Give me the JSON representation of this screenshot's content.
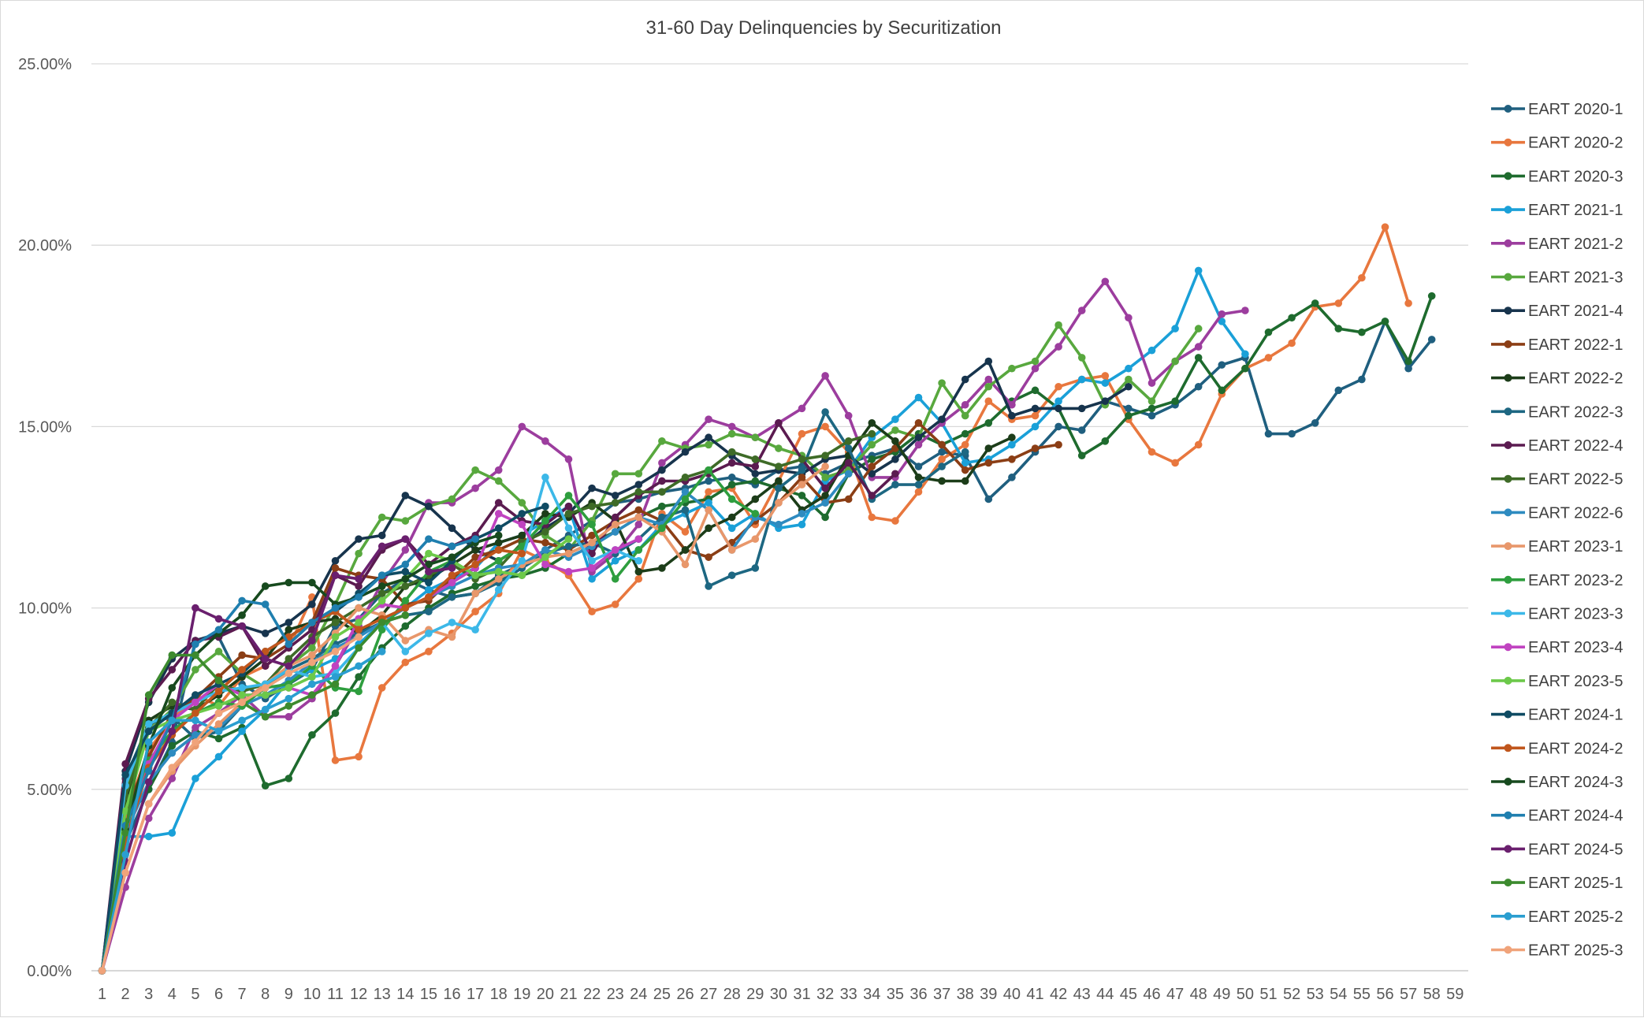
{
  "chart_data": {
    "type": "line",
    "title": "31-60 Day Delinquencies by Securitization",
    "xlabel": "",
    "ylabel": "",
    "x_ticks": [
      "1",
      "2",
      "3",
      "4",
      "5",
      "6",
      "7",
      "8",
      "9",
      "10",
      "11",
      "12",
      "13",
      "14",
      "15",
      "16",
      "17",
      "18",
      "19",
      "20",
      "21",
      "22",
      "23",
      "24",
      "25",
      "26",
      "27",
      "28",
      "29",
      "30",
      "31",
      "32",
      "33",
      "34",
      "35",
      "36",
      "37",
      "38",
      "39",
      "40",
      "41",
      "42",
      "43",
      "44",
      "45",
      "46",
      "47",
      "48",
      "49",
      "50",
      "51",
      "52",
      "53",
      "54",
      "55",
      "56",
      "57",
      "58",
      "59"
    ],
    "y_ticks": [
      "0.00%",
      "5.00%",
      "10.00%",
      "15.00%",
      "20.00%",
      "25.00%"
    ],
    "ylim": [
      0,
      25
    ],
    "xlim": [
      1,
      59
    ],
    "grid": true,
    "legend_position": "right",
    "series": [
      {
        "name": "EART 2020-1",
        "color": "#1F5F7F",
        "values": [
          0,
          3.5,
          5.0,
          6.3,
          9.1,
          9.2,
          7.9,
          7.5,
          7.9,
          8.3,
          9.5,
          9.7,
          10.4,
          10.8,
          10.5,
          10.3,
          10.4,
          10.9,
          11.2,
          11.6,
          12.0,
          12.4,
          12.9,
          13.0,
          13.2,
          13.3,
          13.5,
          13.6,
          13.4,
          13.8,
          13.9,
          13.7,
          14.0,
          14.2,
          14.4,
          13.9,
          14.3,
          14.2,
          13.0,
          13.6,
          14.3,
          15.0,
          14.9,
          15.7,
          15.5,
          15.3,
          15.6,
          16.1,
          16.7,
          16.9,
          14.8,
          14.8,
          15.1,
          16.0,
          16.3,
          17.9,
          16.6,
          17.4
        ]
      },
      {
        "name": "EART 2020-2",
        "color": "#E8773E",
        "values": [
          0,
          4.3,
          6.1,
          6.9,
          7.6,
          7.3,
          8.1,
          8.4,
          8.9,
          10.3,
          5.8,
          5.9,
          7.8,
          8.5,
          8.8,
          9.3,
          9.9,
          10.4,
          11.6,
          11.3,
          10.9,
          9.9,
          10.1,
          10.8,
          12.6,
          12.1,
          13.2,
          13.3,
          12.3,
          13.5,
          14.8,
          15.0,
          14.3,
          12.5,
          12.4,
          13.2,
          14.1,
          14.5,
          15.7,
          15.2,
          15.3,
          16.1,
          16.3,
          16.4,
          15.2,
          14.3,
          14.0,
          14.5,
          15.9,
          16.6,
          16.9,
          17.3,
          18.3,
          18.4,
          19.1,
          20.5,
          18.4
        ]
      },
      {
        "name": "EART 2020-3",
        "color": "#1E6B2E",
        "values": [
          0,
          4.1,
          5.0,
          6.2,
          6.6,
          6.4,
          6.7,
          5.1,
          5.3,
          6.5,
          7.1,
          8.1,
          8.9,
          9.5,
          10.0,
          10.4,
          10.6,
          10.8,
          10.9,
          11.1,
          11.5,
          11.8,
          12.1,
          12.5,
          12.8,
          12.9,
          13.0,
          13.4,
          13.5,
          13.3,
          13.1,
          12.5,
          13.7,
          14.1,
          14.3,
          14.8,
          14.5,
          14.8,
          15.1,
          15.7,
          16.0,
          15.5,
          14.2,
          14.6,
          15.3,
          15.5,
          15.7,
          16.9,
          16.0,
          16.6,
          17.6,
          18.0,
          18.4,
          17.7,
          17.6,
          17.9,
          16.8,
          18.6
        ]
      },
      {
        "name": "EART 2021-1",
        "color": "#1AA0D8",
        "values": [
          0,
          3.7,
          3.7,
          3.8,
          5.3,
          5.9,
          6.6,
          7.2,
          8.0,
          8.3,
          8.6,
          9.0,
          9.6,
          10.0,
          10.5,
          10.8,
          11.1,
          11.8,
          12.0,
          12.4,
          12.8,
          10.8,
          11.3,
          11.6,
          12.3,
          12.6,
          12.9,
          12.2,
          12.6,
          12.2,
          12.3,
          13.5,
          13.8,
          14.7,
          15.2,
          15.8,
          15.1,
          14.0,
          14.1,
          14.5,
          15.0,
          15.7,
          16.3,
          16.2,
          16.6,
          17.1,
          17.7,
          19.3,
          17.9,
          17.0
        ]
      },
      {
        "name": "EART 2021-2",
        "color": "#9C3D9E",
        "values": [
          0,
          2.3,
          4.2,
          5.3,
          6.7,
          7.1,
          7.6,
          7.0,
          7.0,
          7.5,
          8.4,
          9.5,
          10.7,
          11.6,
          12.9,
          12.9,
          13.3,
          13.8,
          15.0,
          14.6,
          14.1,
          11.0,
          11.5,
          12.3,
          14.0,
          14.5,
          15.2,
          15.0,
          14.7,
          15.1,
          15.5,
          16.4,
          15.3,
          13.6,
          13.6,
          14.5,
          15.1,
          15.6,
          16.3,
          15.6,
          16.6,
          17.2,
          18.2,
          19.0,
          18.0,
          16.2,
          16.8,
          17.2,
          18.1,
          18.2
        ]
      },
      {
        "name": "EART 2021-3",
        "color": "#58A83E",
        "values": [
          0,
          5.0,
          6.6,
          7.2,
          8.3,
          8.8,
          8.2,
          7.8,
          8.4,
          8.9,
          10.1,
          11.5,
          12.5,
          12.4,
          12.8,
          13.0,
          13.8,
          13.5,
          12.9,
          12.0,
          11.6,
          12.4,
          13.7,
          13.7,
          14.6,
          14.4,
          14.5,
          14.8,
          14.7,
          14.4,
          14.2,
          13.6,
          13.8,
          14.5,
          14.9,
          14.7,
          16.2,
          15.3,
          16.1,
          16.6,
          16.8,
          17.8,
          16.9,
          15.6,
          16.3,
          15.7,
          16.8,
          17.7
        ]
      },
      {
        "name": "EART 2021-4",
        "color": "#17344D",
        "values": [
          0,
          5.5,
          7.4,
          8.6,
          9.1,
          9.3,
          9.5,
          9.3,
          9.6,
          10.1,
          11.3,
          11.9,
          12.0,
          13.1,
          12.8,
          12.2,
          11.6,
          11.3,
          11.7,
          12.2,
          12.6,
          13.3,
          13.1,
          13.4,
          13.8,
          14.3,
          14.7,
          14.2,
          13.7,
          13.8,
          13.7,
          14.1,
          14.2,
          13.7,
          14.1,
          14.7,
          15.2,
          16.3,
          16.8,
          15.3,
          15.5,
          15.5,
          15.5,
          15.7,
          16.1
        ]
      },
      {
        "name": "EART 2022-1",
        "color": "#8B3E15",
        "values": [
          0,
          4.4,
          5.9,
          7.1,
          7.5,
          8.1,
          8.7,
          8.6,
          9.0,
          9.6,
          11.1,
          10.9,
          10.8,
          10.1,
          10.2,
          10.8,
          11.4,
          11.6,
          11.9,
          11.8,
          11.6,
          12.0,
          12.4,
          12.7,
          12.4,
          11.6,
          11.4,
          11.8,
          12.4,
          12.9,
          13.6,
          12.9,
          13.0,
          13.9,
          14.4,
          15.1,
          14.5,
          13.8,
          14.0,
          14.1,
          14.4,
          14.5
        ]
      },
      {
        "name": "EART 2022-2",
        "color": "#1C3D19",
        "values": [
          0,
          4.6,
          6.9,
          7.3,
          7.2,
          7.6,
          8.1,
          8.6,
          9.4,
          9.6,
          9.7,
          9.3,
          9.8,
          10.6,
          10.8,
          11.2,
          11.6,
          11.8,
          12.0,
          12.6,
          12.5,
          12.9,
          12.4,
          11.0,
          11.1,
          11.6,
          12.2,
          12.5,
          13.0,
          13.5,
          12.7,
          13.1,
          14.2,
          15.1,
          14.6,
          13.6,
          13.5,
          13.5,
          14.4,
          14.7
        ]
      },
      {
        "name": "EART 2022-3",
        "color": "#1D6782",
        "values": [
          0,
          5.3,
          6.8,
          7.0,
          6.4,
          6.6,
          7.3,
          7.8,
          8.3,
          8.6,
          9.0,
          9.3,
          9.6,
          9.8,
          9.9,
          10.3,
          10.4,
          10.7,
          11.1,
          11.5,
          11.7,
          11.8,
          11.5,
          11.9,
          12.5,
          12.7,
          10.6,
          10.9,
          11.1,
          13.3,
          13.8,
          15.4,
          14.4,
          13.0,
          13.4,
          13.4,
          13.9,
          14.3
        ]
      },
      {
        "name": "EART 2022-4",
        "color": "#5B1B50",
        "values": [
          0,
          5.7,
          7.5,
          8.3,
          9.1,
          9.2,
          9.5,
          8.4,
          8.9,
          9.4,
          10.9,
          10.6,
          11.6,
          11.9,
          11.2,
          11.7,
          12.0,
          12.9,
          12.4,
          12.3,
          12.8,
          11.5,
          12.5,
          13.1,
          13.5,
          13.5,
          13.7,
          14.0,
          13.9,
          15.1,
          14.1,
          13.3,
          14.0,
          13.1,
          13.7
        ]
      },
      {
        "name": "EART 2022-5",
        "color": "#3E6B27",
        "values": [
          0,
          4.8,
          6.7,
          7.4,
          7.2,
          7.9,
          7.7,
          7.9,
          8.6,
          9.2,
          9.6,
          10.0,
          10.4,
          10.6,
          10.9,
          11.2,
          10.8,
          11.1,
          11.8,
          12.1,
          12.6,
          12.8,
          12.9,
          13.2,
          13.2,
          13.6,
          13.8,
          14.3,
          14.1,
          13.9,
          14.1,
          14.2,
          14.6,
          14.8
        ]
      },
      {
        "name": "EART 2022-6",
        "color": "#2E8BC0",
        "values": [
          0,
          3.8,
          5.2,
          6.0,
          6.5,
          6.7,
          7.3,
          7.6,
          8.0,
          8.5,
          8.9,
          9.2,
          9.6,
          10.0,
          10.3,
          10.6,
          10.9,
          11.1,
          11.2,
          11.6,
          11.4,
          11.7,
          12.1,
          12.5,
          12.3,
          13.2,
          12.7,
          11.6,
          12.5,
          12.3,
          12.6,
          12.9,
          13.7
        ]
      },
      {
        "name": "EART 2023-1",
        "color": "#E8976B",
        "values": [
          0,
          2.7,
          4.6,
          5.5,
          6.2,
          6.8,
          7.4,
          7.9,
          8.4,
          8.7,
          9.3,
          10.0,
          9.8,
          9.1,
          9.4,
          9.2,
          10.4,
          10.8,
          11.2,
          11.4,
          11.5,
          11.8,
          12.3,
          12.5,
          12.1,
          11.2,
          12.7,
          11.6,
          11.9,
          12.9,
          13.4,
          13.9
        ]
      },
      {
        "name": "EART 2023-2",
        "color": "#2E9E3E",
        "values": [
          0,
          3.9,
          5.8,
          6.6,
          7.1,
          7.4,
          7.3,
          7.8,
          7.9,
          8.4,
          7.8,
          7.7,
          9.4,
          10.2,
          11.0,
          11.3,
          10.9,
          11.3,
          11.7,
          12.4,
          13.1,
          12.3,
          10.8,
          11.6,
          12.2,
          13.0,
          13.8,
          13.0,
          12.6
        ]
      },
      {
        "name": "EART 2023-3",
        "color": "#3CB8E8",
        "values": [
          0,
          5.1,
          6.8,
          7.1,
          7.4,
          7.7,
          7.8,
          7.9,
          8.3,
          8.1,
          8.2,
          8.9,
          9.6,
          8.8,
          9.3,
          9.6,
          9.4,
          10.5,
          11.3,
          13.6,
          12.2,
          11.3,
          11.6,
          11.3
        ]
      },
      {
        "name": "EART 2023-4",
        "color": "#C043C0",
        "values": [
          0,
          3.5,
          5.7,
          6.9,
          7.4,
          7.9,
          7.6,
          7.6,
          7.8,
          7.6,
          8.4,
          9.7,
          10.1,
          10.0,
          10.3,
          10.7,
          11.1,
          12.6,
          12.3,
          11.2,
          11.0,
          11.1,
          11.6,
          11.9
        ]
      },
      {
        "name": "EART 2023-5",
        "color": "#6CC94A",
        "values": [
          0,
          4.4,
          6.6,
          6.9,
          7.1,
          7.3,
          7.6,
          7.6,
          7.8,
          8.1,
          9.2,
          9.6,
          10.2,
          10.8,
          11.5,
          11.3,
          10.9,
          11.0,
          10.9,
          11.4,
          11.9
        ]
      },
      {
        "name": "EART 2024-1",
        "color": "#0F4B63",
        "values": [
          0,
          5.4,
          6.6,
          7.1,
          7.6,
          7.9,
          8.2,
          8.8,
          9.2,
          9.6,
          9.9,
          10.4,
          10.9,
          11.0,
          10.7,
          11.3,
          11.9,
          12.2,
          12.6,
          12.8
        ]
      },
      {
        "name": "EART 2024-2",
        "color": "#C0561C",
        "values": [
          0,
          3.6,
          5.6,
          6.5,
          7.1,
          7.7,
          8.3,
          8.8,
          9.2,
          9.6,
          9.9,
          9.4,
          9.7,
          10.0,
          10.3,
          10.9,
          11.2,
          11.6,
          11.5
        ]
      },
      {
        "name": "EART 2024-3",
        "color": "#174A1E",
        "values": [
          0,
          3.9,
          6.2,
          7.8,
          8.7,
          9.3,
          9.8,
          10.6,
          10.7,
          10.7,
          10.1,
          10.3,
          10.6,
          10.8,
          11.2,
          11.4,
          11.8,
          12.0
        ]
      },
      {
        "name": "EART 2024-4",
        "color": "#1F7FAF",
        "values": [
          0,
          4.0,
          5.5,
          6.9,
          9.0,
          9.4,
          10.2,
          10.1,
          9.0,
          9.6,
          10.0,
          10.3,
          10.9,
          11.2,
          11.9,
          11.7,
          11.9
        ]
      },
      {
        "name": "EART 2024-5",
        "color": "#6A1F6E",
        "values": [
          0,
          3.0,
          5.2,
          6.6,
          10.0,
          9.7,
          9.5,
          8.6,
          8.4,
          9.1,
          10.9,
          10.8,
          11.7,
          11.9,
          11.0,
          11.1
        ]
      },
      {
        "name": "EART 2025-1",
        "color": "#3C8A2E",
        "values": [
          0,
          3.8,
          7.6,
          8.7,
          8.7,
          8.0,
          7.4,
          7.0,
          7.3,
          7.6,
          7.9,
          8.9,
          9.6,
          9.8
        ]
      },
      {
        "name": "EART 2025-2",
        "color": "#2A9ED0",
        "values": [
          0,
          3.2,
          6.3,
          6.9,
          6.9,
          6.6,
          6.9,
          7.2,
          7.5,
          7.9,
          8.1,
          8.4,
          8.8
        ]
      },
      {
        "name": "EART 2025-3",
        "color": "#F0A37A",
        "values": [
          0,
          2.7,
          4.6,
          5.6,
          6.3,
          7.1,
          7.4,
          7.8,
          8.2,
          8.5,
          8.8,
          9.2
        ]
      }
    ]
  }
}
